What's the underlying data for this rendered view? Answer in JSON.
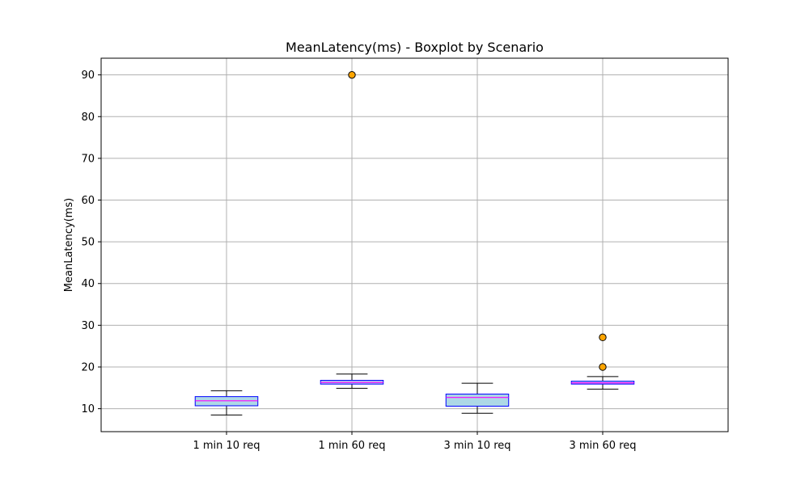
{
  "chart_data": {
    "type": "boxplot",
    "title": "MeanLatency(ms) - Boxplot by Scenario",
    "xlabel": "",
    "ylabel": "MeanLatency(ms)",
    "ylim": [
      4.5,
      94
    ],
    "yticks": [
      10,
      20,
      30,
      40,
      50,
      60,
      70,
      80,
      90
    ],
    "grid": true,
    "categories": [
      "1 min 10 req",
      "1 min 60 req",
      "3 min 10 req",
      "3 min 60 req"
    ],
    "boxes": [
      {
        "whisker_low": 8.5,
        "q1": 10.7,
        "median": 11.9,
        "q3": 12.9,
        "whisker_high": 14.3,
        "outliers": []
      },
      {
        "whisker_low": 14.9,
        "q1": 15.9,
        "median": 16.3,
        "q3": 16.8,
        "whisker_high": 18.3,
        "outliers": [
          90
        ]
      },
      {
        "whisker_low": 8.9,
        "q1": 10.6,
        "median": 12.7,
        "q3": 13.5,
        "whisker_high": 16.1,
        "outliers": []
      },
      {
        "whisker_low": 14.7,
        "q1": 15.9,
        "median": 16.2,
        "q3": 16.6,
        "whisker_high": 17.7,
        "outliers": [
          20,
          27.1
        ]
      }
    ],
    "colors": {
      "box_fill": "#add8e6",
      "box_edge": "#0000ff",
      "median": "#ff00ff",
      "whisker": "#000000",
      "outlier_fill": "#ffa500",
      "outlier_edge": "#000000",
      "grid": "#b0b0b0"
    }
  }
}
